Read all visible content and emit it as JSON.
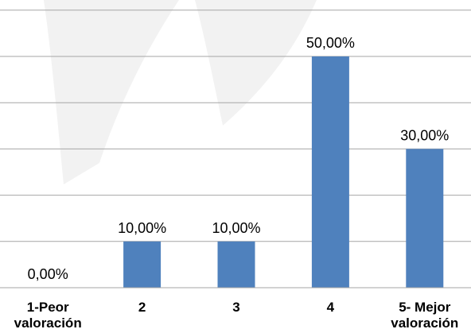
{
  "chart_data": {
    "type": "bar",
    "categories": [
      [
        "1-Peor",
        "valoración"
      ],
      [
        "2"
      ],
      [
        "3"
      ],
      [
        "4"
      ],
      [
        "5- Mejor",
        "valoración"
      ]
    ],
    "values": [
      0,
      10,
      10,
      50,
      30
    ],
    "data_labels": [
      "0,00%",
      "10,00%",
      "10,00%",
      "50,00%",
      "30,00%"
    ],
    "title": "",
    "xlabel": "",
    "ylabel": "",
    "ylim": [
      0,
      60
    ],
    "y_gridlines": [
      10,
      20,
      30,
      40,
      50,
      60
    ],
    "grid": true,
    "legend": "none",
    "colors": {
      "bar": "#4F81BD",
      "grid": "#A6A6A6",
      "watermark": "#F2F2F2"
    }
  }
}
